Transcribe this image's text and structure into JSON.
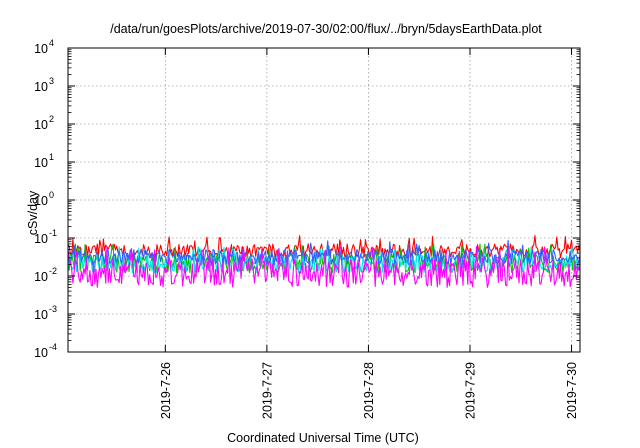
{
  "chart_data": {
    "type": "line",
    "title": "/data/run/goesPlots/archive/2019-07-30/02:00/flux/../bryn/5daysEarthData.plot",
    "xlabel": "Coordinated Universal Time (UTC)",
    "ylabel": "cSv/day",
    "yscale": "log",
    "ylim": [
      0.0001,
      10000
    ],
    "xlim": [
      "2019-07-25T01:00",
      "2019-07-30T02:00"
    ],
    "grid": true,
    "legend": "none",
    "y_ticks": [
      {
        "value": 0.0001,
        "base": "10",
        "exp": "-4"
      },
      {
        "value": 0.001,
        "base": "10",
        "exp": "-3"
      },
      {
        "value": 0.01,
        "base": "10",
        "exp": "-2"
      },
      {
        "value": 0.1,
        "base": "10",
        "exp": "-1"
      },
      {
        "value": 1,
        "base": "10",
        "exp": "0"
      },
      {
        "value": 10,
        "base": "10",
        "exp": "1"
      },
      {
        "value": 100,
        "base": "10",
        "exp": "2"
      },
      {
        "value": 1000,
        "base": "10",
        "exp": "3"
      },
      {
        "value": 10000,
        "base": "10",
        "exp": "4"
      }
    ],
    "x_ticks": [
      {
        "value": "2019-07-26T00:00",
        "label": "2019-7-26"
      },
      {
        "value": "2019-07-27T00:00",
        "label": "2019-7-27"
      },
      {
        "value": "2019-07-28T00:00",
        "label": "2019-7-28"
      },
      {
        "value": "2019-07-29T00:00",
        "label": "2019-7-29"
      },
      {
        "value": "2019-07-30T00:00",
        "label": "2019-7-30"
      }
    ],
    "series": [
      {
        "color": "#ff0000",
        "low": 0.03,
        "high": 0.07,
        "peak": 0.12
      },
      {
        "color": "#00c000",
        "low": 0.012,
        "high": 0.04,
        "peak": 0.07
      },
      {
        "color": "#00e5e5",
        "low": 0.012,
        "high": 0.035,
        "peak": 0.06
      },
      {
        "color": "#3060ff",
        "low": 0.02,
        "high": 0.05,
        "peak": 0.09
      },
      {
        "color": "#ff00ff",
        "low": 0.005,
        "high": 0.03,
        "peak": 0.06
      }
    ]
  }
}
